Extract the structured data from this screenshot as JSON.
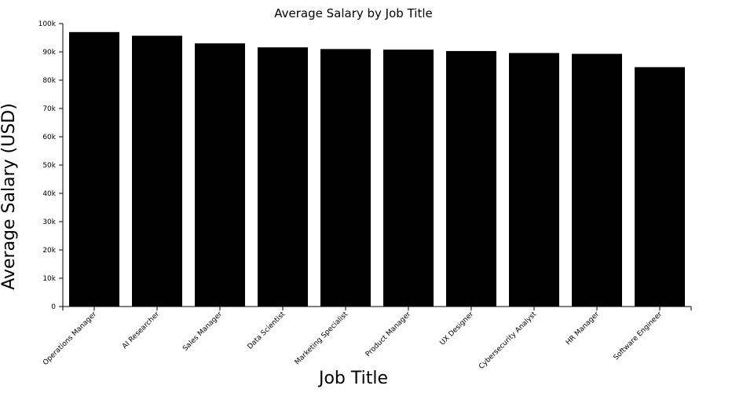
{
  "chart_data": {
    "type": "bar",
    "title": "Average Salary by Job Title",
    "xlabel": "Job Title",
    "ylabel": "Average Salary (USD)",
    "categories": [
      "Operations Manager",
      "AI Researcher",
      "Sales Manager",
      "Data Scientist",
      "Marketing Specialist",
      "Product Manager",
      "UX Designer",
      "Cybersecurity Analyst",
      "HR Manager",
      "Software Engineer"
    ],
    "values": [
      97000,
      95700,
      93000,
      91600,
      91000,
      90800,
      90300,
      89600,
      89300,
      84600
    ],
    "ylim": [
      0,
      100000
    ],
    "yticks": [
      0,
      10000,
      20000,
      30000,
      40000,
      50000,
      60000,
      70000,
      80000,
      90000,
      100000
    ],
    "ytick_labels": [
      "0",
      "10k",
      "20k",
      "30k",
      "40k",
      "50k",
      "60k",
      "70k",
      "80k",
      "90k",
      "100k"
    ],
    "bar_color": "#000000",
    "grid": false,
    "legend": "none"
  }
}
